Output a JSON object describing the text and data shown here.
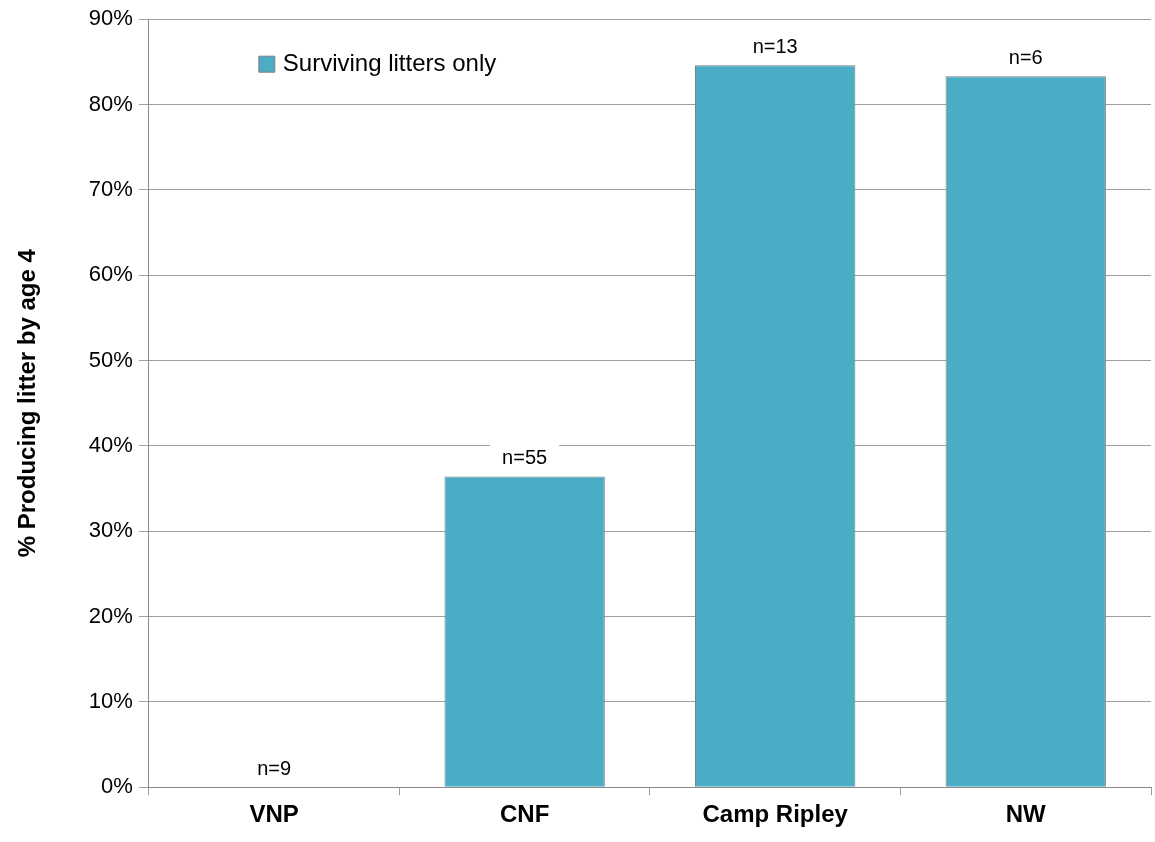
{
  "chart_data": {
    "type": "bar",
    "ylabel": "% Producing litter by age 4",
    "categories": [
      "VNP",
      "CNF",
      "Camp Ripley",
      "NW"
    ],
    "series": [
      {
        "name": "Surviving litters only",
        "color": "#4bacc6",
        "values": [
          0,
          36.4,
          84.6,
          83.3
        ]
      }
    ],
    "ylim": [
      0,
      90
    ],
    "yticks": [
      {
        "value": 0,
        "label": "0%"
      },
      {
        "value": 10,
        "label": "10%"
      },
      {
        "value": 20,
        "label": "20%"
      },
      {
        "value": 30,
        "label": "30%"
      },
      {
        "value": 40,
        "label": "40%"
      },
      {
        "value": 50,
        "label": "50%"
      },
      {
        "value": 60,
        "label": "60%"
      },
      {
        "value": 70,
        "label": "70%"
      },
      {
        "value": 80,
        "label": "80%"
      },
      {
        "value": 90,
        "label": "90%"
      }
    ],
    "annotations": [
      {
        "text": "n=9",
        "x": "VNP",
        "y": 0
      },
      {
        "text": "n=55",
        "x": "CNF",
        "y": 36.4
      },
      {
        "text": "n=13",
        "x": "Camp Ripley",
        "y": 84.6
      },
      {
        "text": "n=6",
        "x": "NW",
        "y": 83.3
      }
    ],
    "grid": "y",
    "legend": "top left"
  }
}
